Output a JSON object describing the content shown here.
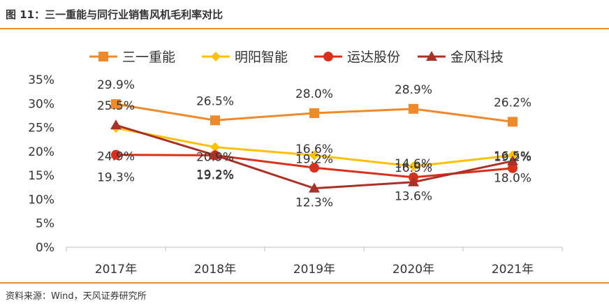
{
  "header": {
    "title": "图 11：三一重能与同行业销售风机毛利率对比"
  },
  "footer": {
    "source": "资料来源：Wind，天风证券研究所"
  },
  "colors": {
    "series": [
      "#ee8a2c",
      "#ffc000",
      "#d9301c",
      "#a83228"
    ],
    "rule": "#ee8a2c",
    "axis": "#bfbfbf",
    "text": "#333333"
  },
  "chart_data": {
    "type": "line",
    "title": "",
    "xlabel": "",
    "ylabel": "",
    "categories": [
      "2017年",
      "2018年",
      "2019年",
      "2020年",
      "2021年"
    ],
    "yticks": [
      "0%",
      "5%",
      "10%",
      "15%",
      "20%",
      "25%",
      "30%",
      "35%"
    ],
    "ylim": [
      0,
      35
    ],
    "legend_position": "top",
    "series": [
      {
        "name": "三一重能",
        "marker": "square",
        "values": [
          29.9,
          26.5,
          28.0,
          28.9,
          26.2
        ]
      },
      {
        "name": "明阳智能",
        "marker": "diamond",
        "values": [
          24.9,
          20.9,
          19.2,
          16.9,
          19.2
        ]
      },
      {
        "name": "运达股份",
        "marker": "circle",
        "values": [
          19.3,
          19.2,
          16.6,
          14.6,
          16.5
        ]
      },
      {
        "name": "金风科技",
        "marker": "triangle",
        "values": [
          25.5,
          19.2,
          12.3,
          13.6,
          18.0
        ]
      }
    ],
    "data_labels": {
      "三一重能": [
        "29.9%",
        "26.5%",
        "28.0%",
        "28.9%",
        "26.2%"
      ],
      "明阳智能": [
        "24.9%",
        "20.9%",
        "19.2%",
        "16.9%",
        "19.2%"
      ],
      "运达股份": [
        "19.3%",
        "19.2%",
        "16.6%",
        "14.6%",
        "16.5%"
      ],
      "金风科技": [
        "25.5%",
        "19.2%",
        "12.3%",
        "13.6%",
        "18.0%"
      ]
    }
  }
}
